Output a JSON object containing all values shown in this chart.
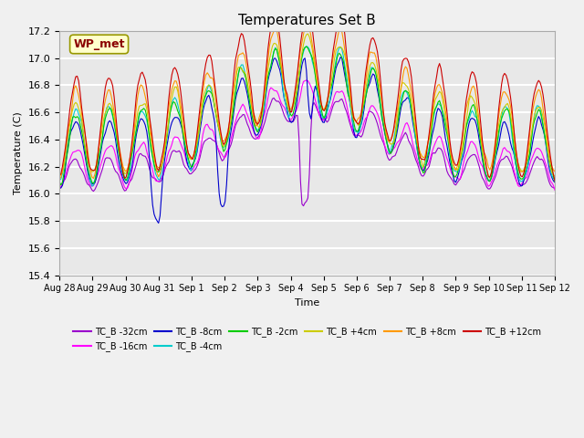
{
  "title": "Temperatures Set B",
  "xlabel": "Time",
  "ylabel": "Temperature (C)",
  "ylim": [
    15.4,
    17.2
  ],
  "annotation_text": "WP_met",
  "annotation_box_color": "#ffffcc",
  "annotation_text_color": "#8b0000",
  "series": [
    {
      "label": "TC_B -32cm",
      "color": "#9900cc"
    },
    {
      "label": "TC_B -16cm",
      "color": "#ff00ff"
    },
    {
      "label": "TC_B -8cm",
      "color": "#0000cc"
    },
    {
      "label": "TC_B -4cm",
      "color": "#00cccc"
    },
    {
      "label": "TC_B -2cm",
      "color": "#00cc00"
    },
    {
      "label": "TC_B +4cm",
      "color": "#cccc00"
    },
    {
      "label": "TC_B +8cm",
      "color": "#ff9900"
    },
    {
      "label": "TC_B +12cm",
      "color": "#cc0000"
    }
  ],
  "x_tick_labels": [
    "Aug 28",
    "Aug 29",
    "Aug 30",
    "Aug 31",
    "Sep 1",
    "Sep 2",
    "Sep 3",
    "Sep 4",
    "Sep 5",
    "Sep 6",
    "Sep 7",
    "Sep 8",
    "Sep 9",
    "Sep 10",
    "Sep 11",
    "Sep 12"
  ],
  "n_points": 336,
  "background_color": "#e8e8e8",
  "grid_color": "#ffffff",
  "seed": 42
}
